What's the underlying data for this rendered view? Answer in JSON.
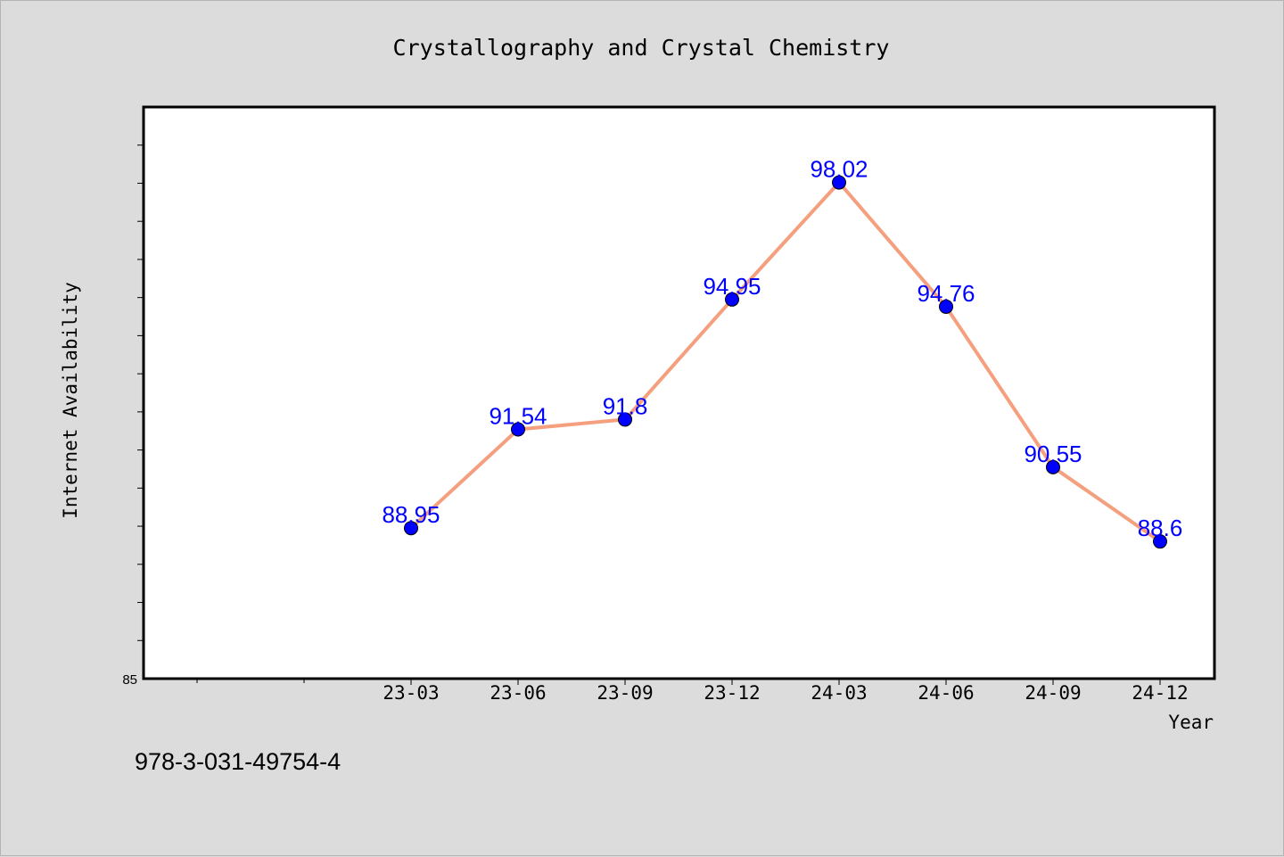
{
  "chart_data": {
    "type": "line",
    "title": "Crystallography and Crystal Chemistry",
    "xlabel": "Year",
    "ylabel": "Internet Availability",
    "categories": [
      "23-03",
      "23-06",
      "23-09",
      "23-12",
      "24-03",
      "24-06",
      "24-09",
      "24-12"
    ],
    "series": [
      {
        "values": [
          88.95,
          91.54,
          91.8,
          94.95,
          98.02,
          94.76,
          90.55,
          88.6
        ],
        "labels": [
          "88.95",
          "91.54",
          "91.8",
          "94.95",
          "98.02",
          "94.76",
          "90.55",
          "88.6"
        ]
      }
    ],
    "ylim": [
      85,
      100
    ],
    "y_tick_labels": [
      "85"
    ],
    "grid": false,
    "legend": "none",
    "colors": {
      "line": "#f4a07f",
      "marker": "#0000ff",
      "data_label": "#0000ff",
      "plot_background": "#ffffff",
      "figure_background": "#dcdcdc"
    }
  },
  "footer_code": "978-3-031-49754-4"
}
